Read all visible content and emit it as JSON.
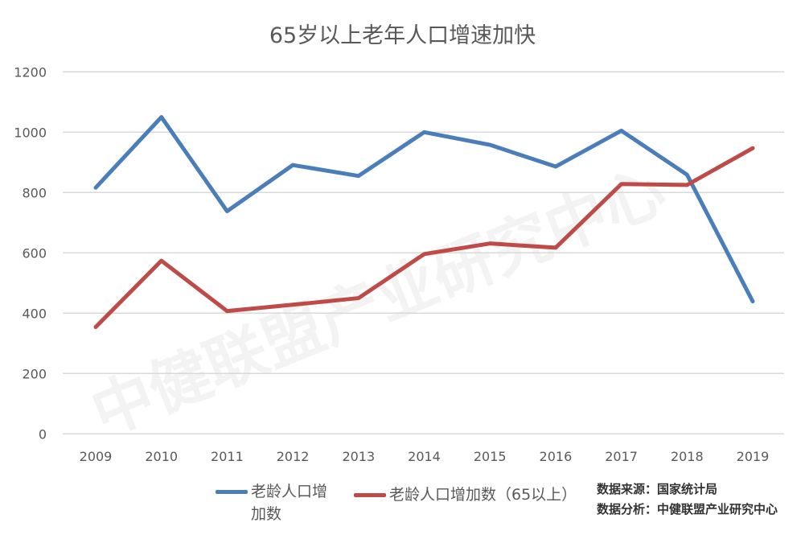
{
  "chart_data": {
    "type": "line",
    "title": "65岁以上老年人口增速加快",
    "categories": [
      "2009",
      "2010",
      "2011",
      "2012",
      "2013",
      "2014",
      "2015",
      "2016",
      "2017",
      "2018",
      "2019"
    ],
    "series": [
      {
        "name": "老龄人口增加数",
        "color": "#4A7EBB",
        "values": [
          816,
          1050,
          738,
          891,
          855,
          1000,
          958,
          886,
          1005,
          859,
          439
        ]
      },
      {
        "name": "老龄人口增加数（65以上）",
        "color": "#BE4B48",
        "values": [
          354,
          574,
          407,
          428,
          450,
          596,
          631,
          617,
          828,
          825,
          947
        ]
      }
    ],
    "ylim": [
      0,
      1200
    ],
    "yticks": [
      0,
      200,
      400,
      600,
      800,
      1000,
      1200
    ],
    "grid": true,
    "legend_position": "bottom"
  },
  "source": {
    "line1": "数据来源：国家统计局",
    "line2": "数据分析：中健联盟产业研究中心"
  },
  "watermark": "中健联盟产业研究中心"
}
